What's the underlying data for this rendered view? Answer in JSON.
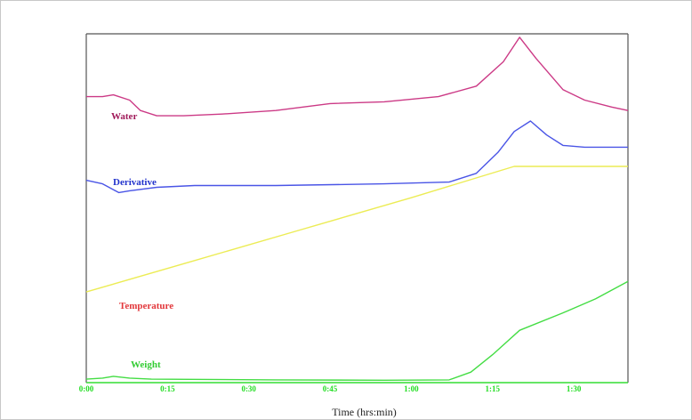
{
  "chart_data": {
    "type": "line",
    "title": "",
    "xlabel": "Time (hrs:min)",
    "ylabel": "",
    "x_ticks": [
      "0:00",
      "0:15",
      "0:30",
      "0:45",
      "1:00",
      "1:15",
      "1:30"
    ],
    "x_range_minutes": [
      0,
      100
    ],
    "y_range": [
      0,
      100
    ],
    "grid": false,
    "legend": "inline labels next to each trace",
    "series": [
      {
        "name": "Water",
        "color": "#cc3a86",
        "points": [
          [
            0,
            82
          ],
          [
            3,
            82
          ],
          [
            5,
            82.5
          ],
          [
            8,
            81
          ],
          [
            10,
            78
          ],
          [
            13,
            76.5
          ],
          [
            18,
            76.5
          ],
          [
            25,
            77
          ],
          [
            35,
            78
          ],
          [
            45,
            80
          ],
          [
            55,
            80.5
          ],
          [
            65,
            82
          ],
          [
            72,
            85
          ],
          [
            77,
            92
          ],
          [
            80,
            99
          ],
          [
            83,
            93
          ],
          [
            88,
            84
          ],
          [
            92,
            81
          ],
          [
            97,
            79
          ],
          [
            100,
            78
          ]
        ]
      },
      {
        "name": "Derivative",
        "color": "#4a55e6",
        "points": [
          [
            0,
            58
          ],
          [
            3,
            57
          ],
          [
            6,
            54.5
          ],
          [
            8,
            55
          ],
          [
            13,
            56
          ],
          [
            20,
            56.5
          ],
          [
            35,
            56.5
          ],
          [
            55,
            57
          ],
          [
            67,
            57.5
          ],
          [
            72,
            60
          ],
          [
            76,
            66
          ],
          [
            79,
            72
          ],
          [
            82,
            75
          ],
          [
            85,
            71
          ],
          [
            88,
            68
          ],
          [
            92,
            67.5
          ],
          [
            97,
            67.5
          ],
          [
            100,
            67.5
          ]
        ]
      },
      {
        "name": "Temperature",
        "color": "#ecec55",
        "points": [
          [
            0,
            26
          ],
          [
            20,
            35
          ],
          [
            40,
            44
          ],
          [
            60,
            53
          ],
          [
            79,
            62
          ],
          [
            84,
            62
          ],
          [
            100,
            62
          ]
        ]
      },
      {
        "name": "Weight",
        "color": "#44dd44",
        "points": [
          [
            0,
            1
          ],
          [
            3,
            1.3
          ],
          [
            5,
            1.8
          ],
          [
            8,
            1.3
          ],
          [
            12,
            1
          ],
          [
            35,
            0.8
          ],
          [
            55,
            0.7
          ],
          [
            67,
            0.8
          ],
          [
            71,
            3
          ],
          [
            75,
            8
          ],
          [
            80,
            15
          ],
          [
            88,
            20
          ],
          [
            94,
            24
          ],
          [
            100,
            29
          ]
        ]
      }
    ]
  }
}
